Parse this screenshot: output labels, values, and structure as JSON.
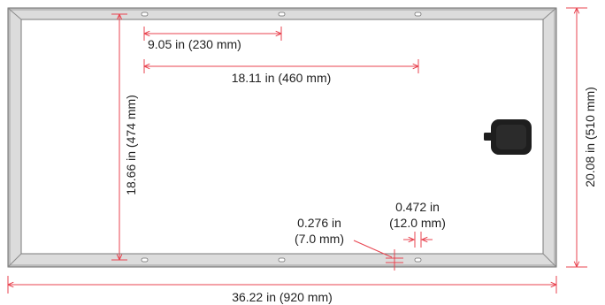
{
  "dimensions": {
    "hole_spacing_short": "9.05 in (230 mm)",
    "hole_spacing_long": "18.11 in (460 mm)",
    "hole_span_vertical": "18.66 in (474 mm)",
    "overall_height": "20.08 in (510 mm)",
    "overall_width": "36.22 in (920 mm)",
    "hole_slot_offset": {
      "line1": "0.276 in",
      "line2": "(7.0 mm)"
    },
    "hole_slot_width": {
      "line1": "0.472 in",
      "line2": "(12.0 mm)"
    }
  },
  "colors": {
    "frame_outer": "#bdbdbd",
    "frame_face": "#dcdcdc",
    "frame_stroke": "#6e6e6e",
    "dimension_line": "#e8434f",
    "junction_box": "#1e1e1e",
    "text": "#222222"
  },
  "icons": {
    "junction_box": "junction-box-icon"
  }
}
